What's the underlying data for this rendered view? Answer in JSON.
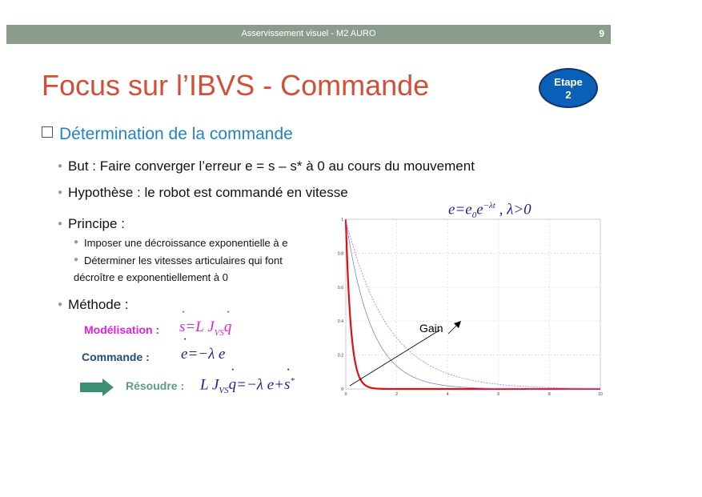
{
  "header": {
    "title": "Asservissement visuel - M2 AURO",
    "page_number": "9"
  },
  "title": "Focus sur l’IBVS - Commande",
  "badge": {
    "line1": "Etape",
    "line2": "2"
  },
  "section": "Détermination de la commande",
  "bullets": {
    "but": "But : Faire converger l’erreur e = s – s* à 0 au cours du mouvement",
    "hypothese": "Hypothèse : le robot est commandé en vitesse",
    "principe": "Principe :",
    "sub1": "Imposer une décroissance exponentielle à e",
    "sub2": "Déterminer les vitesses articulaires qui font",
    "sub2b": "décroître e exponentiellement à 0",
    "methode": "Méthode :"
  },
  "modelisation": {
    "label": "Modélisation :",
    "equation": "ṡ=L J_VS q̇"
  },
  "commande": {
    "label": "Commande :",
    "equation": "ė=−λ e"
  },
  "resoudre": {
    "label": "Résoudre :",
    "equation": "L J_VS q̇=−λ e+ṡ*"
  },
  "top_equation": "e=e₀ e^(−λt) , λ>0",
  "colors": {
    "title": "#d0503a",
    "section": "#2383c7",
    "modelisation": "#e020e0",
    "commande": "#1f4e79",
    "resoudre": "#5a9c82",
    "arrow": "#3f8f76",
    "equation": "#1f1f8f"
  },
  "chart_data": {
    "type": "line",
    "annotation": "Gain",
    "xlim": [
      0,
      10
    ],
    "ylim": [
      0,
      1
    ],
    "x_ticks": [
      "0",
      "2",
      "4",
      "6",
      "8",
      "10"
    ],
    "y_ticks": [
      "0",
      "0.2",
      "0.4",
      "0.6",
      "0.8",
      "1"
    ],
    "grid": true,
    "series": [
      {
        "lambda": 5,
        "color": "#e01010",
        "style": "thick"
      },
      {
        "lambda": 1,
        "color": "#7070dd",
        "style": "thin"
      },
      {
        "lambda": 0.6,
        "color": "#dd66dd",
        "style": "dashed"
      }
    ]
  }
}
